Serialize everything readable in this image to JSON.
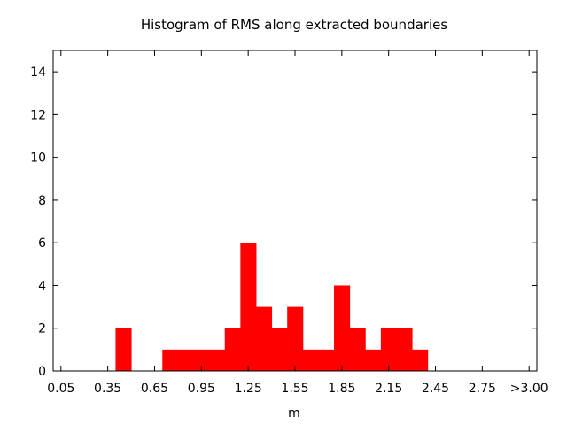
{
  "chart_data": {
    "type": "bar",
    "title": "Histogram of RMS along extracted boundaries",
    "xlabel": "m",
    "ylabel": "",
    "ylim": [
      0,
      15
    ],
    "yticks": [
      0,
      2,
      4,
      6,
      8,
      10,
      12,
      14
    ],
    "xticks": [
      "0.05",
      "0.35",
      "0.65",
      "0.95",
      "1.25",
      "1.55",
      "1.85",
      "2.15",
      "2.45",
      "2.75",
      ">3.00"
    ],
    "bin_width": 0.1,
    "bar_color": "#ff0000",
    "bins_start": [
      0.4,
      0.7,
      0.8,
      0.9,
      1.0,
      1.1,
      1.2,
      1.3,
      1.4,
      1.5,
      1.6,
      1.7,
      1.8,
      1.9,
      2.0,
      2.1,
      2.2,
      2.3
    ],
    "values": [
      2,
      1,
      1,
      1,
      1,
      2,
      6,
      3,
      2,
      3,
      1,
      1,
      4,
      2,
      1,
      2,
      2,
      1
    ],
    "grid": false,
    "legend": "none"
  }
}
